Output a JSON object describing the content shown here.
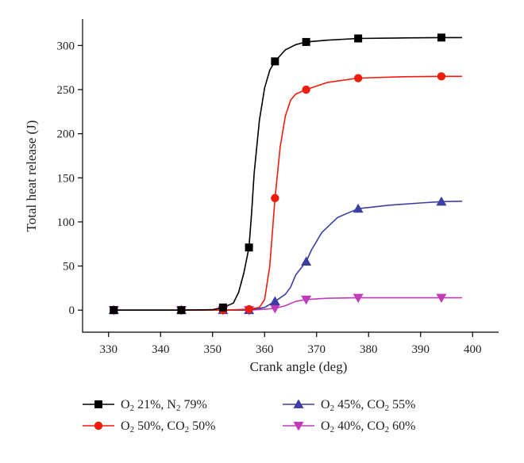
{
  "chart_data": {
    "type": "line",
    "title": "",
    "xlabel": "Crank angle (deg)",
    "ylabel": "Total heat release (J)",
    "xlim": [
      325,
      405
    ],
    "ylim": [
      -25,
      330
    ],
    "xticks": [
      330,
      340,
      350,
      360,
      370,
      380,
      390,
      400
    ],
    "yticks": [
      0,
      50,
      100,
      150,
      200,
      250,
      300
    ],
    "grid": false,
    "legend_position": "bottom",
    "series": [
      {
        "name": "O2 21%, N2 79%",
        "legend": [
          {
            "t": "O"
          },
          {
            "t": "2",
            "sub": true
          },
          {
            "t": " 21%, N"
          },
          {
            "t": "2",
            "sub": true
          },
          {
            "t": " 79%"
          }
        ],
        "color": "#000000",
        "marker": "square",
        "markers": [
          [
            331,
            0
          ],
          [
            344,
            0
          ],
          [
            352,
            3
          ],
          [
            357,
            71
          ],
          [
            362,
            282
          ],
          [
            368,
            304
          ],
          [
            378,
            308
          ],
          [
            394,
            309
          ]
        ],
        "curve": [
          [
            331,
            0
          ],
          [
            344,
            0
          ],
          [
            350,
            0.5
          ],
          [
            352,
            3
          ],
          [
            354,
            8
          ],
          [
            355,
            20
          ],
          [
            356,
            42
          ],
          [
            357,
            71
          ],
          [
            357.5,
            110
          ],
          [
            358,
            155
          ],
          [
            359,
            215
          ],
          [
            360,
            252
          ],
          [
            361,
            272
          ],
          [
            362,
            282
          ],
          [
            364,
            295
          ],
          [
            366,
            301
          ],
          [
            368,
            304
          ],
          [
            372,
            306
          ],
          [
            378,
            308
          ],
          [
            386,
            308.5
          ],
          [
            394,
            309
          ],
          [
            398,
            309
          ]
        ]
      },
      {
        "name": "O2 50%, CO2 50%",
        "legend": [
          {
            "t": "O"
          },
          {
            "t": "2",
            "sub": true
          },
          {
            "t": " 50%, CO"
          },
          {
            "t": "2",
            "sub": true
          },
          {
            "t": " 50%"
          }
        ],
        "color": "#ee1c0c",
        "marker": "circle",
        "markers": [
          [
            331,
            0
          ],
          [
            344,
            0
          ],
          [
            352,
            0
          ],
          [
            357,
            1
          ],
          [
            362,
            127
          ],
          [
            368,
            250
          ],
          [
            378,
            263
          ],
          [
            394,
            265
          ]
        ],
        "curve": [
          [
            331,
            0
          ],
          [
            344,
            0
          ],
          [
            352,
            0
          ],
          [
            357,
            1
          ],
          [
            359,
            3
          ],
          [
            360,
            12
          ],
          [
            361,
            50
          ],
          [
            362,
            127
          ],
          [
            363,
            185
          ],
          [
            364,
            220
          ],
          [
            365,
            238
          ],
          [
            366,
            245
          ],
          [
            368,
            250
          ],
          [
            372,
            258
          ],
          [
            378,
            263
          ],
          [
            386,
            264.5
          ],
          [
            394,
            265
          ],
          [
            398,
            265
          ]
        ]
      },
      {
        "name": "O2 45%, CO2 55%",
        "legend": [
          {
            "t": "O"
          },
          {
            "t": "2",
            "sub": true
          },
          {
            "t": " 45%, CO"
          },
          {
            "t": "2",
            "sub": true
          },
          {
            "t": " 55%"
          }
        ],
        "color": "#3b3fa3",
        "marker": "triangle-up",
        "markers": [
          [
            331,
            0
          ],
          [
            344,
            0
          ],
          [
            352,
            0
          ],
          [
            357,
            0
          ],
          [
            362,
            10
          ],
          [
            368,
            55
          ],
          [
            378,
            115
          ],
          [
            394,
            123
          ]
        ],
        "curve": [
          [
            331,
            0
          ],
          [
            344,
            0
          ],
          [
            352,
            0
          ],
          [
            357,
            0
          ],
          [
            360,
            3
          ],
          [
            362,
            10
          ],
          [
            364,
            18
          ],
          [
            365,
            26
          ],
          [
            366,
            40
          ],
          [
            368,
            55
          ],
          [
            369,
            68
          ],
          [
            371,
            88
          ],
          [
            374,
            105
          ],
          [
            378,
            115
          ],
          [
            384,
            119
          ],
          [
            390,
            121.5
          ],
          [
            394,
            123
          ],
          [
            398,
            123.5
          ]
        ]
      },
      {
        "name": "O2 40%, CO2 60%",
        "legend": [
          {
            "t": "O"
          },
          {
            "t": "2",
            "sub": true
          },
          {
            "t": " 40%, CO"
          },
          {
            "t": "2",
            "sub": true
          },
          {
            "t": " 60%"
          }
        ],
        "color": "#c03cb8",
        "marker": "triangle-down",
        "markers": [
          [
            331,
            0
          ],
          [
            344,
            0
          ],
          [
            352,
            0
          ],
          [
            357,
            0
          ],
          [
            362,
            2
          ],
          [
            368,
            12
          ],
          [
            378,
            14
          ],
          [
            394,
            14
          ]
        ],
        "curve": [
          [
            331,
            0
          ],
          [
            344,
            0
          ],
          [
            352,
            0
          ],
          [
            357,
            0
          ],
          [
            360,
            1
          ],
          [
            362,
            2
          ],
          [
            364,
            5
          ],
          [
            366,
            10
          ],
          [
            368,
            12
          ],
          [
            372,
            13.5
          ],
          [
            378,
            14
          ],
          [
            386,
            14
          ],
          [
            394,
            14
          ],
          [
            398,
            14
          ]
        ]
      }
    ]
  }
}
